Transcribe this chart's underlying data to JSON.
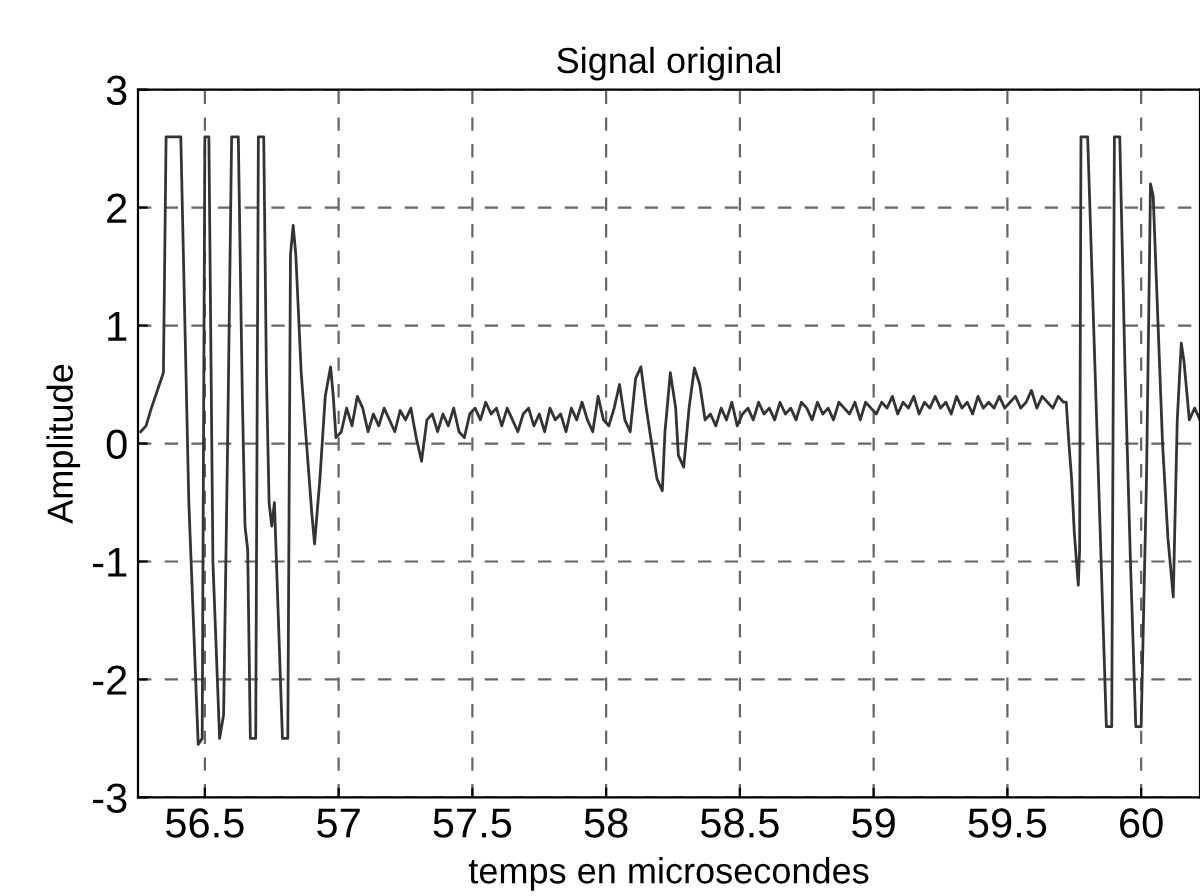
{
  "chart_data": {
    "type": "line",
    "title": "Signal original",
    "xlabel": "temps en microsecondes",
    "ylabel": "Amplitude",
    "xlim": [
      56.25,
      60.22
    ],
    "ylim": [
      -3,
      3
    ],
    "xticks": [
      56.5,
      57,
      57.5,
      58,
      58.5,
      59,
      59.5,
      60
    ],
    "yticks": [
      -3,
      -2,
      -1,
      0,
      1,
      2,
      3
    ],
    "grid": true,
    "line_style": "solid",
    "marker": "none",
    "series": [
      {
        "color": "#333333",
        "x": [
          56.26,
          56.28,
          56.3,
          56.33,
          56.345,
          56.355,
          56.41,
          56.44,
          56.475,
          56.49,
          56.5,
          56.515,
          56.53,
          56.54,
          56.555,
          56.57,
          56.585,
          56.6,
          56.625,
          56.64,
          56.65,
          56.66,
          56.67,
          56.69,
          56.7,
          56.72,
          56.73,
          56.74,
          56.75,
          56.76,
          56.79,
          56.81,
          56.82,
          56.83,
          56.84,
          56.86,
          56.88,
          56.9,
          56.91,
          56.93,
          56.95,
          56.97,
          56.98,
          56.99,
          57.01,
          57.03,
          57.05,
          57.07,
          57.09,
          57.11,
          57.13,
          57.15,
          57.17,
          57.19,
          57.21,
          57.23,
          57.25,
          57.27,
          57.29,
          57.31,
          57.33,
          57.35,
          57.37,
          57.39,
          57.41,
          57.43,
          57.45,
          57.47,
          57.49,
          57.51,
          57.53,
          57.55,
          57.57,
          57.59,
          57.61,
          57.63,
          57.65,
          57.67,
          57.69,
          57.71,
          57.73,
          57.75,
          57.77,
          57.79,
          57.81,
          57.83,
          57.85,
          57.87,
          57.89,
          57.91,
          57.93,
          57.95,
          57.97,
          57.99,
          58.01,
          58.03,
          58.05,
          58.07,
          58.09,
          58.11,
          58.13,
          58.15,
          58.17,
          58.19,
          58.21,
          58.22,
          58.24,
          58.26,
          58.27,
          58.29,
          58.31,
          58.33,
          58.35,
          58.37,
          58.39,
          58.41,
          58.43,
          58.45,
          58.47,
          58.49,
          58.51,
          58.53,
          58.55,
          58.57,
          58.59,
          58.61,
          58.63,
          58.65,
          58.67,
          58.69,
          58.71,
          58.73,
          58.75,
          58.77,
          58.79,
          58.81,
          58.83,
          58.85,
          58.87,
          58.89,
          58.91,
          58.93,
          58.95,
          58.97,
          58.99,
          59.01,
          59.03,
          59.05,
          59.07,
          59.09,
          59.11,
          59.13,
          59.15,
          59.17,
          59.19,
          59.21,
          59.23,
          59.25,
          59.27,
          59.29,
          59.31,
          59.33,
          59.35,
          59.37,
          59.39,
          59.41,
          59.43,
          59.45,
          59.47,
          59.49,
          59.51,
          59.53,
          59.55,
          59.57,
          59.59,
          59.61,
          59.63,
          59.65,
          59.67,
          59.69,
          59.71,
          59.72,
          59.73,
          59.74,
          59.75,
          59.765,
          59.77,
          59.775,
          59.8,
          59.87,
          59.89,
          59.9,
          59.92,
          59.94,
          59.96,
          59.98,
          60.0,
          60.02,
          60.035,
          60.045,
          60.06,
          60.08,
          60.1,
          60.12,
          60.135,
          60.15,
          60.16,
          60.18,
          60.2,
          60.22
        ],
        "values": [
          0.1,
          0.15,
          0.3,
          0.5,
          0.6,
          2.6,
          2.6,
          -0.5,
          -2.55,
          -2.5,
          2.6,
          2.6,
          -1.0,
          -1.6,
          -2.5,
          -2.3,
          0.0,
          2.6,
          2.6,
          0.4,
          -0.7,
          -0.9,
          -2.5,
          -2.5,
          2.6,
          2.6,
          0.6,
          -0.5,
          -0.7,
          -0.5,
          -2.5,
          -2.5,
          1.6,
          1.85,
          1.6,
          0.6,
          0.0,
          -0.6,
          -0.85,
          -0.3,
          0.4,
          0.65,
          0.4,
          0.05,
          0.1,
          0.3,
          0.15,
          0.4,
          0.3,
          0.1,
          0.25,
          0.15,
          0.3,
          0.2,
          0.1,
          0.28,
          0.2,
          0.3,
          0.05,
          -0.15,
          0.2,
          0.25,
          0.1,
          0.25,
          0.15,
          0.3,
          0.1,
          0.05,
          0.25,
          0.3,
          0.2,
          0.35,
          0.25,
          0.3,
          0.15,
          0.3,
          0.2,
          0.1,
          0.25,
          0.3,
          0.15,
          0.25,
          0.1,
          0.3,
          0.2,
          0.25,
          0.1,
          0.3,
          0.2,
          0.35,
          0.2,
          0.1,
          0.4,
          0.2,
          0.15,
          0.3,
          0.5,
          0.2,
          0.1,
          0.55,
          0.65,
          0.3,
          0.0,
          -0.3,
          -0.4,
          0.1,
          0.6,
          0.3,
          -0.1,
          -0.2,
          0.3,
          0.64,
          0.5,
          0.2,
          0.25,
          0.15,
          0.3,
          0.2,
          0.35,
          0.15,
          0.25,
          0.3,
          0.2,
          0.35,
          0.25,
          0.3,
          0.2,
          0.35,
          0.25,
          0.3,
          0.2,
          0.35,
          0.3,
          0.2,
          0.35,
          0.25,
          0.3,
          0.2,
          0.35,
          0.3,
          0.25,
          0.35,
          0.2,
          0.35,
          0.3,
          0.25,
          0.35,
          0.3,
          0.4,
          0.25,
          0.35,
          0.3,
          0.4,
          0.25,
          0.35,
          0.3,
          0.4,
          0.3,
          0.35,
          0.25,
          0.4,
          0.3,
          0.35,
          0.25,
          0.4,
          0.3,
          0.35,
          0.3,
          0.4,
          0.3,
          0.35,
          0.4,
          0.3,
          0.35,
          0.45,
          0.3,
          0.4,
          0.35,
          0.3,
          0.4,
          0.35,
          0.35,
          0.0,
          -0.3,
          -0.75,
          -1.2,
          -0.9,
          2.6,
          2.6,
          -2.4,
          -2.4,
          2.6,
          2.6,
          0.6,
          -1.0,
          -2.4,
          -2.4,
          -0.3,
          2.2,
          2.1,
          1.2,
          0.0,
          -0.8,
          -1.3,
          0.2,
          0.85,
          0.7,
          0.2,
          0.3,
          0.2
        ]
      }
    ]
  }
}
